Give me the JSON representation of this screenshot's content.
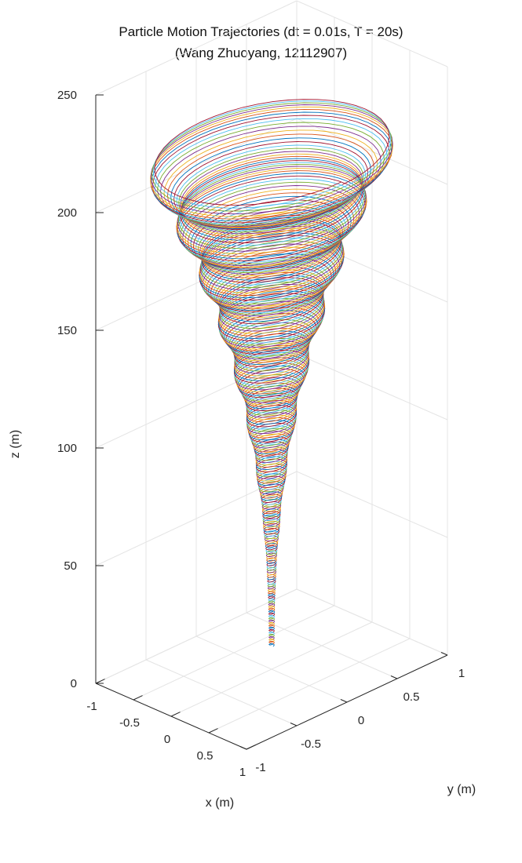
{
  "chart_data": {
    "type": "line",
    "title": "Particle Motion Trajectories (dt = 0.01s, T = 20s)",
    "subtitle": "(Wang Zhuoyang, 12112907)",
    "xlabel": "x (m)",
    "ylabel": "y (m)",
    "zlabel": "z (m)",
    "xlim": [
      -1,
      1
    ],
    "ylim": [
      -1,
      1
    ],
    "zlim": [
      0,
      250
    ],
    "x_ticks": [
      "-1",
      "-0.5",
      "0",
      "0.5",
      "1"
    ],
    "y_ticks": [
      "-1",
      "-0.5",
      "0",
      "0.5",
      "1"
    ],
    "z_ticks": [
      "0",
      "50",
      "100",
      "150",
      "200",
      "250"
    ],
    "grid": true,
    "view": "3d",
    "trajectory": {
      "shape": "funnel spiral",
      "z_range": [
        10,
        220
      ],
      "radius_at_bottom": 0.02,
      "radius_at_top": 0.95
    },
    "colors": [
      "#0072BD",
      "#D95319",
      "#EDB120",
      "#7E2F8E",
      "#77AC30",
      "#4DBEEE",
      "#A2142F"
    ]
  }
}
